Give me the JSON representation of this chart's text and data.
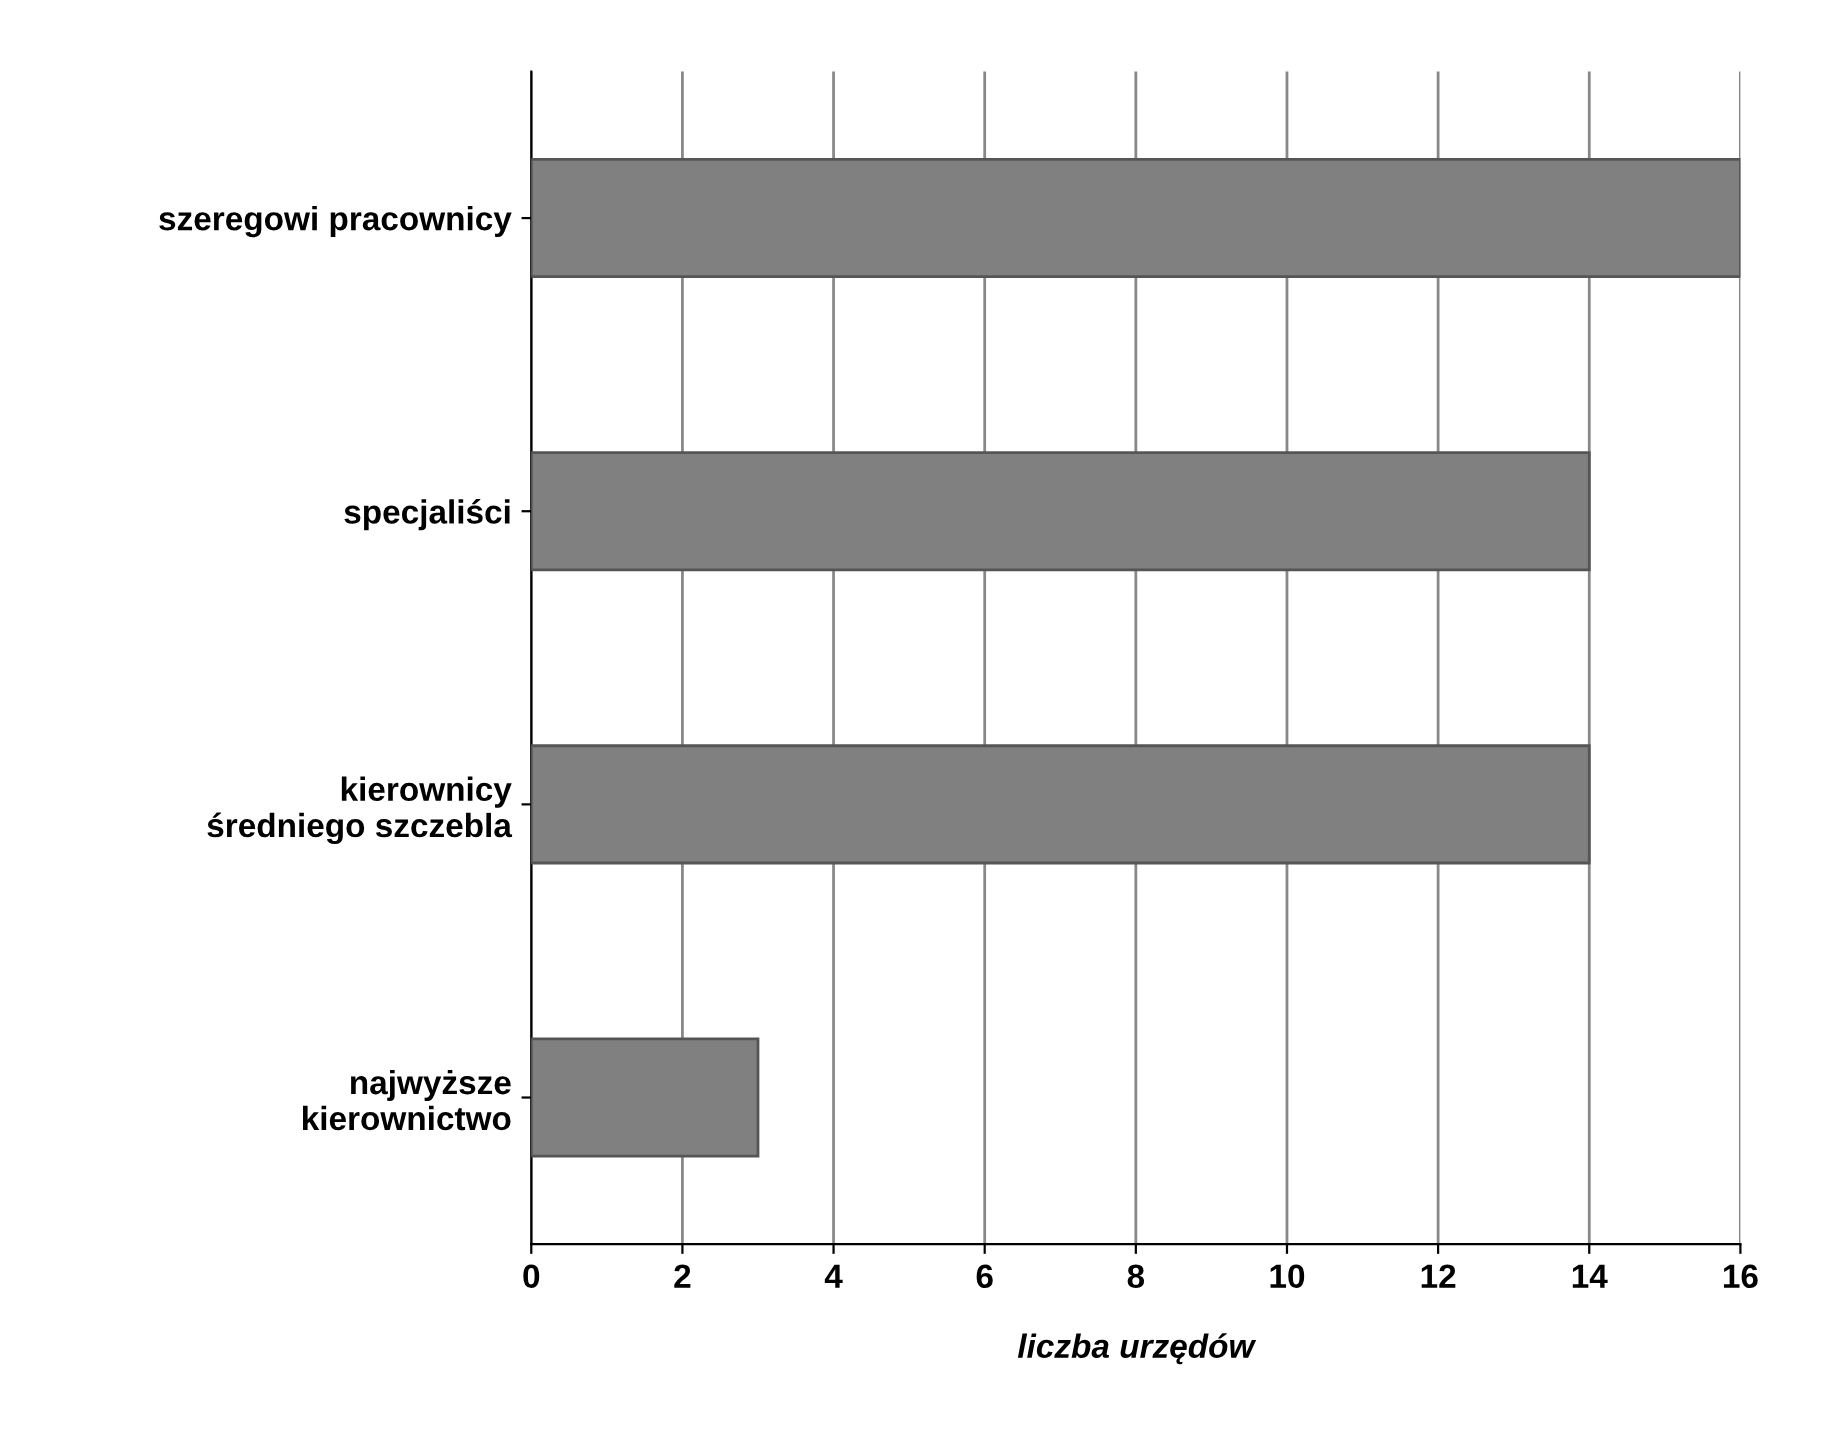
{
  "chart_data": {
    "type": "bar",
    "orientation": "horizontal",
    "xlabel": "liczba urzędów",
    "categories": [
      "szeregowi pracownicy",
      "specjaliści",
      "kierownicy\nśredniego szczebla",
      "najwyższe\nkierownictwo"
    ],
    "values": [
      16,
      14,
      14,
      3
    ],
    "color": "#808080",
    "xlim": [
      0,
      16
    ],
    "xticks": [
      0,
      2,
      4,
      6,
      8,
      10,
      12,
      14,
      16
    ],
    "grid": "x"
  }
}
